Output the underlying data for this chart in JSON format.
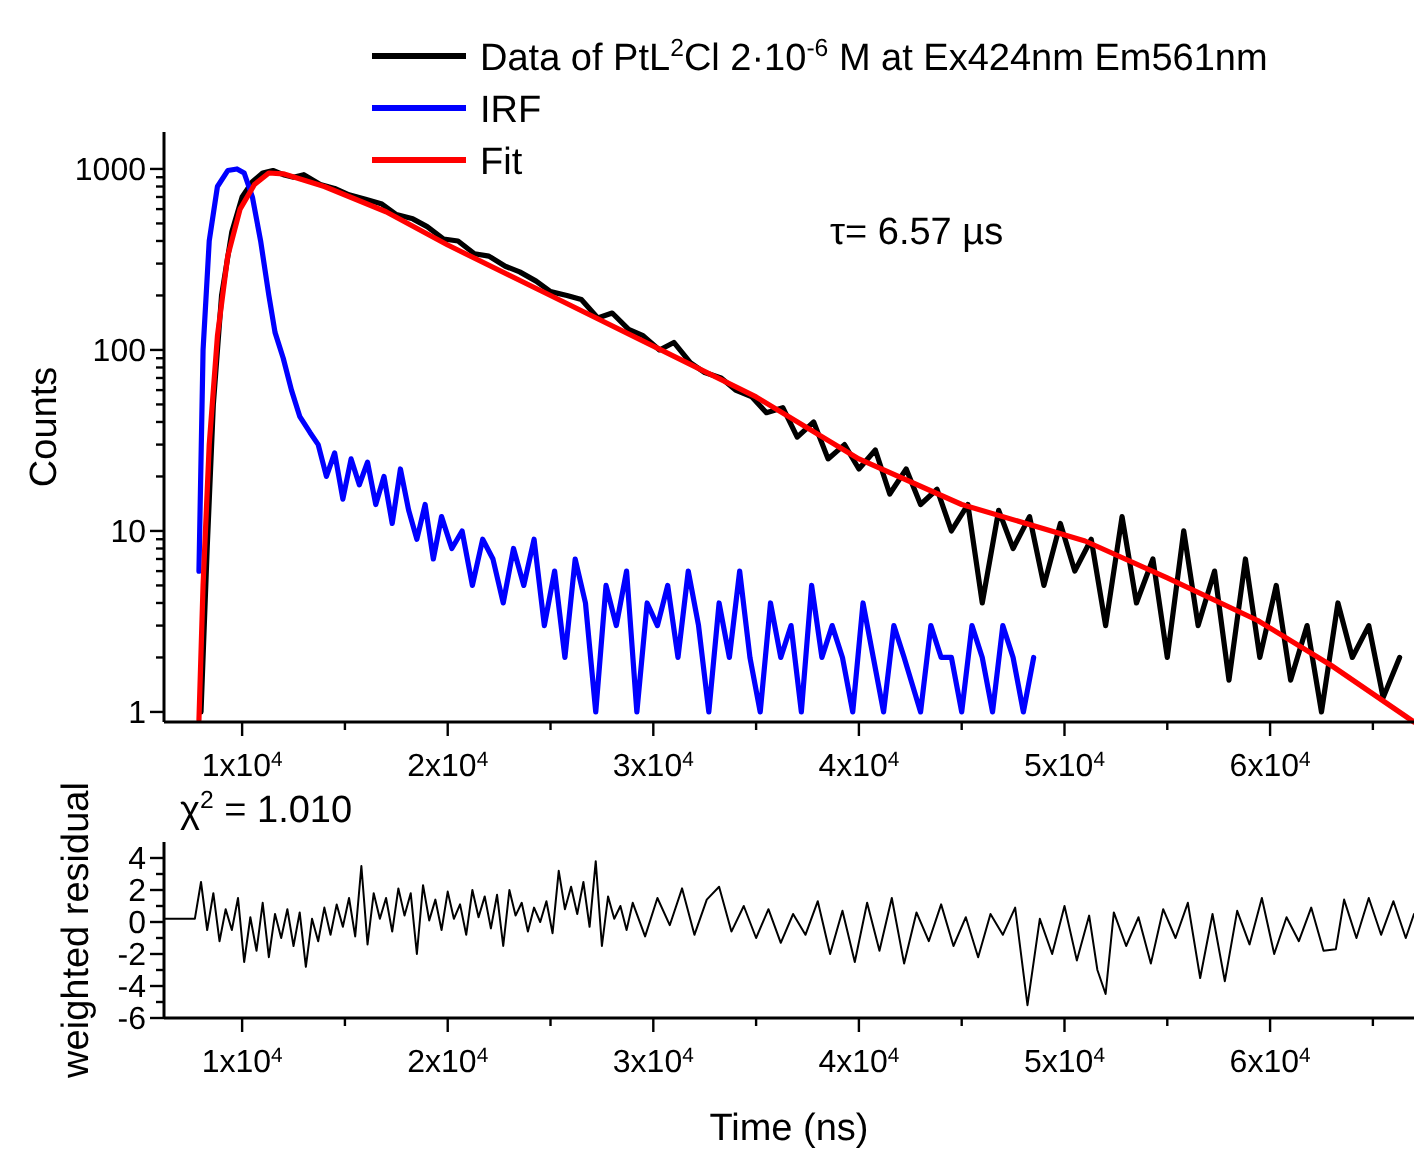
{
  "chart_data": [
    {
      "type": "line",
      "xlim": [
        6200,
        67000
      ],
      "ylim": [
        0.88,
        1600
      ],
      "log": "y",
      "legend": "top",
      "ylabel": "Counts",
      "annotations": [
        "τ=  6.57  µs"
      ],
      "xticks": [
        {
          "value": 10000,
          "label": "1x10$^{4}$"
        },
        {
          "value": 15000,
          "label": null
        },
        {
          "value": 20000,
          "label": "2x10$^{4}$"
        },
        {
          "value": 25000,
          "label": null
        },
        {
          "value": 30000,
          "label": "3x10$^{4}$"
        },
        {
          "value": 35000,
          "label": null
        },
        {
          "value": 40000,
          "label": "4x10$^{4}$"
        },
        {
          "value": 45000,
          "label": null
        },
        {
          "value": 50000,
          "label": "5x10$^{4}$"
        },
        {
          "value": 55000,
          "label": null
        },
        {
          "value": 60000,
          "label": "6x10$^{4}$"
        },
        {
          "value": 65000,
          "label": null
        }
      ],
      "yticks": [
        1,
        {
          "value": 2,
          "label": null
        },
        {
          "value": 3,
          "label": null
        },
        {
          "value": 4,
          "label": null
        },
        {
          "value": 5,
          "label": null
        },
        {
          "value": 6,
          "label": null
        },
        {
          "value": 7,
          "label": null
        },
        {
          "value": 8,
          "label": null
        },
        {
          "value": 9,
          "label": null
        },
        10,
        {
          "value": 20,
          "label": null
        },
        {
          "value": 30,
          "label": null
        },
        {
          "value": 40,
          "label": null
        },
        {
          "value": 50,
          "label": null
        },
        {
          "value": 60,
          "label": null
        },
        {
          "value": 70,
          "label": null
        },
        {
          "value": 80,
          "label": null
        },
        {
          "value": 90,
          "label": null
        },
        100,
        {
          "value": 200,
          "label": null
        },
        {
          "value": 300,
          "label": null
        },
        {
          "value": 400,
          "label": null
        },
        {
          "value": 500,
          "label": null
        },
        {
          "value": 600,
          "label": null
        },
        {
          "value": 700,
          "label": null
        },
        {
          "value": 800,
          "label": null
        },
        {
          "value": 900,
          "label": null
        },
        1000
      ],
      "series": [
        {
          "name": "Data of PtL$^{2}$Cl 2·10$^{-6}$ M at Ex424nm Em561nm",
          "color": "#000000",
          "x": [
            8000,
            8300,
            8600,
            9000,
            9500,
            10000,
            10500,
            11000,
            11500,
            12000,
            12500,
            13000,
            13800,
            14500,
            15200,
            16000,
            16800,
            17500,
            18300,
            19000,
            19800,
            20500,
            21300,
            22000,
            22800,
            23500,
            24300,
            25000,
            25800,
            26500,
            27300,
            28000,
            28800,
            29500,
            30300,
            31000,
            31800,
            32500,
            33300,
            34000,
            34800,
            35500,
            36300,
            37000,
            37800,
            38500,
            39300,
            40000,
            40800,
            41500,
            42300,
            43000,
            43800,
            44500,
            45300,
            46000,
            46800,
            47500,
            48300,
            49000,
            49800,
            50500,
            51300,
            52000,
            52800,
            53500,
            54300,
            55000,
            55800,
            56500,
            57300,
            58000,
            58800,
            59500,
            60300,
            61000,
            61800,
            62500,
            63300,
            64000,
            64800,
            65500,
            66300
          ],
          "values": [
            1,
            8,
            50,
            200,
            450,
            700,
            850,
            950,
            980,
            930,
            900,
            930,
            820,
            780,
            720,
            680,
            640,
            560,
            530,
            480,
            410,
            400,
            340,
            330,
            290,
            270,
            240,
            210,
            200,
            190,
            150,
            160,
            130,
            120,
            100,
            110,
            85,
            75,
            70,
            60,
            55,
            45,
            48,
            33,
            40,
            25,
            30,
            22,
            28,
            16,
            22,
            14,
            17,
            10,
            14,
            4,
            13,
            8,
            12,
            5,
            11,
            6,
            9,
            3,
            12,
            4,
            7,
            2,
            10,
            3,
            6,
            1.5,
            7,
            2,
            5,
            1.5,
            3,
            1,
            4,
            2,
            3,
            1.2,
            2
          ]
        },
        {
          "name": "IRF",
          "color": "#0000ff",
          "x": [
            7900,
            8100,
            8400,
            8800,
            9300,
            9750,
            10100,
            10500,
            10900,
            11300,
            11600,
            12000,
            12400,
            12800,
            13300,
            13700,
            14100,
            14500,
            14900,
            15300,
            15700,
            16100,
            16500,
            16900,
            17300,
            17700,
            18100,
            18500,
            18900,
            19300,
            19700,
            20200,
            20700,
            21200,
            21700,
            22200,
            22700,
            23200,
            23700,
            24200,
            24700,
            25200,
            25700,
            26200,
            26700,
            27200,
            27700,
            28200,
            28700,
            29200,
            29700,
            30200,
            30700,
            31200,
            31700,
            32200,
            32700,
            33200,
            33700,
            34200,
            34700,
            35200,
            35700,
            36200,
            36700,
            37200,
            37700,
            38200,
            38700,
            39200,
            39700,
            40200,
            40700,
            41200,
            41700,
            42200,
            43000,
            43500,
            44000,
            44500,
            45000,
            45500,
            46000,
            46500,
            47000,
            47500,
            48000,
            48500
          ],
          "values": [
            6,
            100,
            400,
            800,
            980,
            1000,
            950,
            700,
            400,
            200,
            125,
            90,
            60,
            43,
            35,
            30,
            20,
            27,
            15,
            25,
            18,
            24,
            14,
            20,
            11,
            22,
            13,
            9,
            14,
            7,
            12,
            8,
            10,
            5,
            9,
            7,
            4,
            8,
            5,
            9,
            3,
            6,
            2,
            7,
            4,
            1,
            5,
            3,
            6,
            1,
            4,
            3,
            5,
            2,
            6,
            3,
            1,
            4,
            2,
            6,
            2,
            1,
            4,
            2,
            3,
            1,
            5,
            2,
            3,
            2,
            1,
            4,
            2,
            1,
            3,
            2,
            1,
            3,
            2,
            2,
            1,
            3,
            2,
            1,
            3,
            2,
            1,
            2
          ]
        },
        {
          "name": "Fit",
          "color": "#ff0000",
          "x": [
            7900,
            8100,
            8400,
            8800,
            9300,
            9900,
            10600,
            11300,
            12000,
            14000,
            17000,
            20000,
            25000,
            30000,
            35000,
            40000,
            45000,
            51000,
            55000,
            59400,
            63000,
            67000
          ],
          "values": [
            0.9,
            5,
            30,
            120,
            330,
            600,
            820,
            950,
            940,
            800,
            580,
            380,
            200,
            105,
            55,
            25,
            14,
            8.8,
            5.5,
            3.2,
            1.8,
            0.88
          ]
        }
      ]
    },
    {
      "type": "line",
      "xlim": [
        6200,
        67000
      ],
      "ylim": [
        -6,
        5
      ],
      "xlabel": "Time (ns)",
      "ylabel": "weighted residual",
      "annotations": [
        "χ$^{2}$ = 1.010"
      ],
      "xticks": [
        {
          "value": 10000,
          "label": "1x10$^{4}$"
        },
        {
          "value": 15000,
          "label": null
        },
        {
          "value": 20000,
          "label": "2x10$^{4}$"
        },
        {
          "value": 25000,
          "label": null
        },
        {
          "value": 30000,
          "label": "3x10$^{4}$"
        },
        {
          "value": 35000,
          "label": null
        },
        {
          "value": 40000,
          "label": "4x10$^{4}$"
        },
        {
          "value": 45000,
          "label": null
        },
        {
          "value": 50000,
          "label": "5x10$^{4}$"
        },
        {
          "value": 55000,
          "label": null
        },
        {
          "value": 60000,
          "label": "6x10$^{4}$"
        },
        {
          "value": 65000,
          "label": null
        }
      ],
      "yticks": [
        -6,
        {
          "value": -5,
          "label": null
        },
        -4,
        {
          "value": -3,
          "label": null
        },
        -2,
        {
          "value": -1,
          "label": null
        },
        0,
        {
          "value": 1,
          "label": null
        },
        2,
        {
          "value": 3,
          "label": null
        },
        4
      ],
      "series": [
        {
          "color": "#000000",
          "x": [
            6200,
            7700,
            8000,
            8300,
            8600,
            8900,
            9200,
            9500,
            9800,
            10100,
            10400,
            10700,
            11000,
            11300,
            11600,
            11900,
            12200,
            12500,
            12800,
            13100,
            13400,
            13700,
            14000,
            14300,
            14600,
            14900,
            15200,
            15500,
            15800,
            16100,
            16400,
            16700,
            17000,
            17300,
            17600,
            17900,
            18200,
            18500,
            18800,
            19100,
            19400,
            19700,
            20000,
            20300,
            20600,
            20900,
            21200,
            21500,
            21800,
            22100,
            22400,
            22700,
            23000,
            23300,
            23600,
            23900,
            24200,
            24500,
            24800,
            25100,
            25400,
            25700,
            26000,
            26300,
            26600,
            26900,
            27200,
            27500,
            27800,
            28100,
            28400,
            28700,
            29000,
            29600,
            30200,
            30800,
            31400,
            32000,
            32600,
            33200,
            33800,
            34400,
            35000,
            35600,
            36200,
            36800,
            37400,
            38000,
            38600,
            39200,
            39800,
            40400,
            41000,
            41600,
            42200,
            42800,
            43400,
            44000,
            44600,
            45200,
            45800,
            46400,
            47000,
            47600,
            48200,
            48800,
            49400,
            50000,
            50600,
            51200,
            51600,
            52000,
            52400,
            53000,
            53600,
            54200,
            54800,
            55400,
            56000,
            56600,
            57200,
            57800,
            58400,
            59000,
            59600,
            60200,
            60800,
            61400,
            62000,
            62600,
            63200,
            63600,
            64200,
            64800,
            65400,
            66000,
            66600,
            67000
          ],
          "values": [
            0.2,
            0.2,
            2.5,
            -0.5,
            1.8,
            -1.2,
            0.8,
            -0.5,
            1.5,
            -2.5,
            0.3,
            -1.8,
            1.2,
            -2.2,
            0.5,
            -1.0,
            0.8,
            -1.5,
            0.6,
            -2.8,
            0.2,
            -1.2,
            0.9,
            -0.8,
            1.1,
            -0.3,
            1.5,
            -0.9,
            3.5,
            -1.4,
            1.8,
            0.2,
            1.5,
            -0.6,
            2.1,
            0.4,
            1.8,
            -2.0,
            2.3,
            0.1,
            1.4,
            -0.5,
            1.9,
            0.2,
            1.1,
            -0.8,
            2.0,
            0.3,
            1.6,
            -0.4,
            1.7,
            -1.5,
            2.0,
            0.4,
            1.2,
            -0.6,
            0.9,
            0.0,
            1.3,
            -0.7,
            3.2,
            0.8,
            2.2,
            0.5,
            2.5,
            -0.3,
            3.8,
            -1.5,
            1.6,
            0.2,
            1.0,
            -0.5,
            1.2,
            -0.9,
            1.5,
            -0.2,
            2.1,
            -0.8,
            1.4,
            2.2,
            -0.6,
            1.0,
            -1.0,
            0.8,
            -1.3,
            0.5,
            -0.8,
            1.3,
            -2.0,
            0.7,
            -2.5,
            1.2,
            -1.8,
            1.5,
            -2.6,
            0.6,
            -1.2,
            1.1,
            -1.5,
            0.3,
            -2.2,
            0.5,
            -0.8,
            0.9,
            -5.2,
            0.2,
            -2.0,
            1.0,
            -2.4,
            0.4,
            -3.0,
            -4.5,
            0.6,
            -1.5,
            0.3,
            -2.6,
            0.8,
            -1.0,
            1.2,
            -3.5,
            0.5,
            -3.7,
            0.7,
            -1.4,
            1.5,
            -2.0,
            0.3,
            -1.2,
            0.9,
            -1.8,
            -1.7,
            1.4,
            -1.0,
            1.5,
            -0.8,
            1.3,
            -1.0,
            0.5
          ]
        }
      ]
    }
  ]
}
